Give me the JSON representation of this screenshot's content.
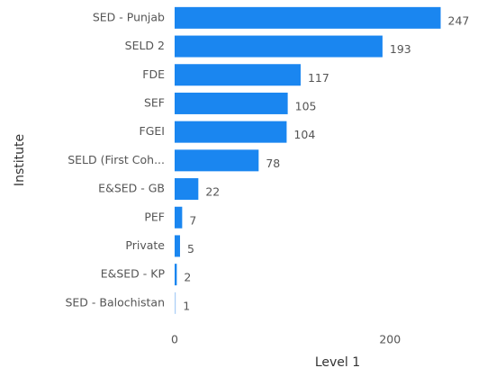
{
  "chart_data": {
    "type": "hbar",
    "x_label": "Level 1",
    "y_label": "Institute",
    "categories": [
      "SED - Punjab",
      "SELD 2",
      "FDE",
      "SEF",
      "FGEI",
      "SELD (First Coh...",
      "E&SED - GB",
      "PEF",
      "Private",
      "E&SED - KP",
      "SED - Balochistan"
    ],
    "values": [
      247,
      193,
      117,
      105,
      104,
      78,
      22,
      7,
      5,
      2,
      1
    ],
    "colors": [
      "#1a86f0",
      "#1a86f0",
      "#1a86f0",
      "#1a86f0",
      "#1a86f0",
      "#1a86f0",
      "#1a86f0",
      "#1a86f0",
      "#1a86f0",
      "#1a86f0",
      "#a8cdf6"
    ],
    "xlim": [
      0,
      280
    ],
    "xticks": [
      0,
      200
    ]
  }
}
